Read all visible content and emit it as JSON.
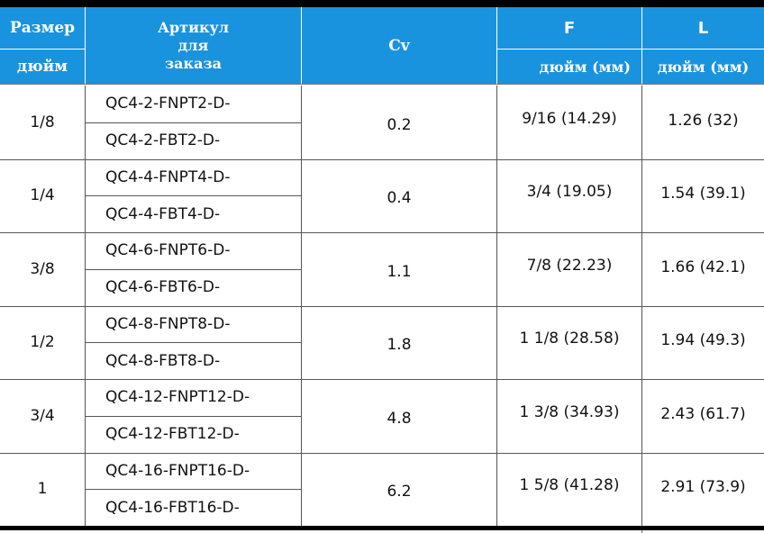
{
  "header": {
    "size_top": "Размер",
    "size_bottom": "дюйм",
    "article_line1": "Артикул",
    "article_line2": "для",
    "article_line3": "заказа",
    "cv": "Cv",
    "f_top": "F",
    "f_bottom": "дюйм (мм)",
    "l_top": "L",
    "l_bottom": "дюйм (мм)"
  },
  "rows": [
    {
      "size": "1/8",
      "article_a": "QC4-2-FNPT2-D-",
      "article_b": "QC4-2-FBT2-D-",
      "cv": "0.2",
      "f": "9/16 (14.29)",
      "l": "1.26 (32)"
    },
    {
      "size": "1/4",
      "article_a": "QC4-4-FNPT4-D-",
      "article_b": "QC4-4-FBT4-D-",
      "cv": "0.4",
      "f": "3/4 (19.05)",
      "l": "1.54 (39.1)"
    },
    {
      "size": "3/8",
      "article_a": "QC4-6-FNPT6-D-",
      "article_b": "QC4-6-FBT6-D-",
      "cv": "1.1",
      "f": "7/8 (22.23)",
      "l": "1.66 (42.1)"
    },
    {
      "size": "1/2",
      "article_a": "QC4-8-FNPT8-D-",
      "article_b": "QC4-8-FBT8-D-",
      "cv": "1.8",
      "f": "1 1/8 (28.58)",
      "l": "1.94 (49.3)"
    },
    {
      "size": "3/4",
      "article_a": "QC4-12-FNPT12-D-",
      "article_b": "QC4-12-FBT12-D-",
      "cv": "4.8",
      "f": "1 3/8 (34.93)",
      "l": "2.43 (61.7)"
    },
    {
      "size": "1",
      "article_a": "QC4-16-FNPT16-D-",
      "article_b": "QC4-16-FBT16-D-",
      "cv": "6.2",
      "f": "1 5/8 (41.28)",
      "l": "2.91 (73.9)"
    }
  ]
}
